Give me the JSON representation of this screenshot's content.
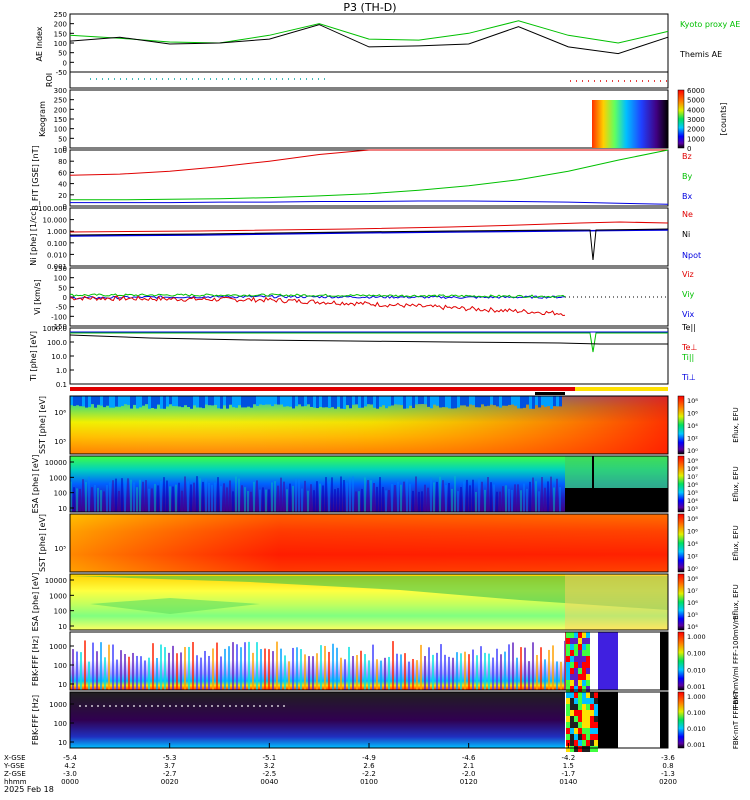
{
  "title": "P3 (TH-D)",
  "date_label": "2025 Feb 18",
  "time_axis": {
    "rows": [
      {
        "label": "X-GSE",
        "values": [
          "-5.4",
          "-5.3",
          "-5.1",
          "-4.9",
          "-4.6",
          "-4.2",
          "-3.6"
        ]
      },
      {
        "label": "Y-GSE",
        "values": [
          "4.2",
          "3.7",
          "3.2",
          "2.6",
          "2.1",
          "1.5",
          "0.8"
        ]
      },
      {
        "label": "Z-GSE",
        "values": [
          "-3.0",
          "-2.7",
          "-2.5",
          "-2.2",
          "-2.0",
          "-1.7",
          "-1.3"
        ]
      },
      {
        "label": "hhmm",
        "values": [
          "0000",
          "0020",
          "0040",
          "0100",
          "0120",
          "0140",
          "0200"
        ]
      }
    ]
  },
  "chart_data": [
    {
      "type": "line",
      "panel": "ae",
      "ylabel": "AE Index",
      "ylim": [
        -50,
        250
      ],
      "yticks": [
        "250",
        "200",
        "150",
        "100",
        "50",
        "0",
        "-50"
      ],
      "x": [
        "00:00",
        "00:10",
        "00:20",
        "00:30",
        "00:40",
        "00:50",
        "01:00",
        "01:10",
        "01:20",
        "01:30",
        "01:40",
        "01:50",
        "02:00"
      ],
      "series": [
        {
          "name": "Kyoto proxy AE",
          "color": "#00c000",
          "values": [
            140,
            125,
            105,
            100,
            140,
            200,
            120,
            115,
            150,
            215,
            140,
            100,
            160
          ]
        },
        {
          "name": "Themis AE",
          "color": "#000000",
          "values": [
            110,
            130,
            95,
            100,
            120,
            195,
            80,
            85,
            95,
            185,
            80,
            45,
            130
          ]
        }
      ]
    },
    {
      "type": "line",
      "panel": "roi",
      "ylabel": "ROI",
      "note": "dotted indicator"
    },
    {
      "type": "heatmap",
      "panel": "keogram",
      "ylabel": "Keogram",
      "yticks": [
        "300",
        "250",
        "200",
        "150",
        "100",
        "50",
        "0"
      ],
      "colorbar": {
        "ticks": [
          "6000",
          "5000",
          "4000",
          "3000",
          "2000",
          "1000",
          "0"
        ],
        "label": "[counts]"
      }
    },
    {
      "type": "line",
      "panel": "bfit",
      "ylabel": "B_FIT [GSE] [nT]",
      "ylim": [
        0,
        100
      ],
      "yticks": [
        "100",
        "80",
        "60",
        "40",
        "20",
        "0"
      ],
      "x": [
        "00:00",
        "00:10",
        "00:20",
        "00:30",
        "00:40",
        "00:50",
        "01:00",
        "01:10",
        "01:20",
        "01:30",
        "01:40",
        "01:50",
        "02:00"
      ],
      "series": [
        {
          "name": "Bz",
          "color": "#e00000",
          "values": [
            55,
            57,
            62,
            70,
            80,
            92,
            100,
            100,
            100,
            100,
            100,
            100,
            100
          ]
        },
        {
          "name": "By",
          "color": "#00c000",
          "values": [
            11,
            11,
            12,
            13,
            15,
            18,
            22,
            28,
            36,
            47,
            62,
            82,
            100
          ]
        },
        {
          "name": "Bx",
          "color": "#0000e0",
          "values": [
            6,
            6,
            6,
            7,
            7,
            8,
            8,
            9,
            9,
            8,
            7,
            5,
            3
          ]
        }
      ]
    },
    {
      "type": "line",
      "panel": "ni",
      "ylabel": "Ni [phe] [1/cc]",
      "yticks": [
        "100.000",
        "10.000",
        "1.000",
        "0.100",
        "0.010",
        "0.001"
      ],
      "series": [
        {
          "name": "Ne",
          "color": "#e00000"
        },
        {
          "name": "Ni",
          "color": "#000000"
        },
        {
          "name": "Npot",
          "color": "#0000e0"
        }
      ]
    },
    {
      "type": "line",
      "panel": "vi",
      "ylabel": "Vi [km/s]",
      "ylim": [
        -150,
        150
      ],
      "yticks": [
        "150",
        "100",
        "50",
        "0",
        "-50",
        "-100",
        "-150"
      ],
      "x": [
        "00:00",
        "00:20",
        "00:40",
        "01:00",
        "01:20",
        "01:40"
      ],
      "series": [
        {
          "name": "Viz",
          "color": "#e00000",
          "values": [
            -5,
            -10,
            -15,
            -35,
            -60,
            -85
          ]
        },
        {
          "name": "Viy",
          "color": "#00c000",
          "values": [
            10,
            10,
            10,
            8,
            5,
            3
          ]
        },
        {
          "name": "Vix",
          "color": "#0000e0",
          "values": [
            -5,
            0,
            2,
            0,
            -2,
            0
          ]
        }
      ]
    },
    {
      "type": "line",
      "panel": "ti",
      "ylabel": "Ti [phe] [eV]",
      "yticks": [
        "1000.0",
        "100.0",
        "10.0",
        "1.0",
        "0.1"
      ],
      "series": [
        {
          "name": "Te||",
          "color": "#000000"
        },
        {
          "name": "Te⊥",
          "color": "#e00000"
        },
        {
          "name": "Ti||",
          "color": "#00c000"
        },
        {
          "name": "Ti⊥",
          "color": "#0000e0"
        }
      ]
    },
    {
      "type": "heatmap",
      "panel": "sst_e",
      "ylabel": "SST [phe] [eV]",
      "yticks": [
        "10⁶",
        "10⁵"
      ],
      "colorbar": {
        "label": "Eflux, EFU",
        "ticks": [
          "10⁸",
          "10⁶",
          "10⁴",
          "10²",
          "10⁰"
        ]
      }
    },
    {
      "type": "heatmap",
      "panel": "esa_e",
      "ylabel": "ESA [phe] [eV]",
      "yticks": [
        "10000",
        "1000",
        "100",
        "10"
      ],
      "colorbar": {
        "label": "Eflux, EFU",
        "ticks": [
          "10⁹",
          "10⁸",
          "10⁷",
          "10⁶",
          "10⁵",
          "10⁴",
          "10³"
        ]
      }
    },
    {
      "type": "heatmap",
      "panel": "sst_i",
      "ylabel": "SST [phe] [eV]",
      "yticks": [
        "10⁵"
      ],
      "colorbar": {
        "label": "Eflux, EFU",
        "ticks": [
          "10⁸",
          "10⁶",
          "10⁴",
          "10²",
          "10⁰"
        ]
      }
    },
    {
      "type": "heatmap",
      "panel": "esa_i",
      "ylabel": "ESA [phe] [eV]",
      "yticks": [
        "10000",
        "1000",
        "100",
        "10"
      ],
      "colorbar": {
        "label": "Eflux, EFU",
        "ticks": [
          "10⁸",
          "10⁷",
          "10⁶",
          "10⁵",
          "10⁴"
        ]
      }
    },
    {
      "type": "heatmap",
      "panel": "fbk_ffff",
      "ylabel": "FBK-FFF [Hz]",
      "yticks": [
        "1000",
        "100",
        "10"
      ],
      "colorbar": {
        "label": "FBK-nmV/ml FFF-100mV/ml",
        "ticks": [
          "1.000",
          "0.100",
          "0.010",
          "0.001"
        ]
      }
    },
    {
      "type": "heatmap",
      "panel": "fbk_fff",
      "ylabel": "FBK-FFF [Hz]",
      "yticks": [
        "1000",
        "100",
        "10"
      ],
      "colorbar": {
        "label": "FBK-nnT FFF-nnT",
        "ticks": [
          "1.000",
          "0.100",
          "0.010",
          "0.001"
        ]
      }
    }
  ]
}
